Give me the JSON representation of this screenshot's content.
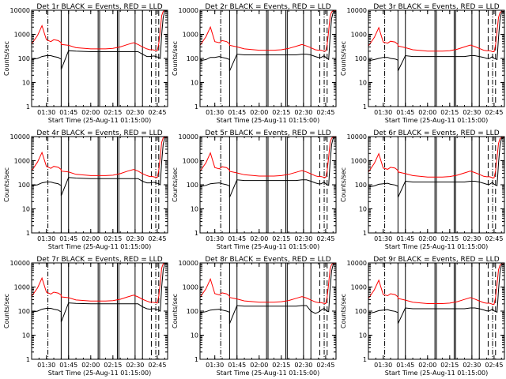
{
  "figure": {
    "background": "#ffffff",
    "colors": {
      "axes": "#000000",
      "events": "#000000",
      "lld": "#ff0000"
    }
  },
  "shared": {
    "type": "line",
    "xlabel": "Start Time (25-Aug-11 01:15:00)",
    "ylabel": "Counts/sec",
    "y_scale": "log",
    "ylim": [
      1,
      10000
    ],
    "y_ticks": [
      1,
      10,
      100,
      1000,
      10000
    ],
    "y_tick_labels": [
      "1",
      "10",
      "100",
      "1000",
      "10000"
    ],
    "xlim": [
      "01:20",
      "02:52"
    ],
    "x_ticks": [
      "01:30",
      "01:45",
      "02:00",
      "02:15",
      "02:30",
      "02:45"
    ],
    "x_tick_labels": [
      "01:30",
      "01:45",
      "02:00",
      "02:15",
      "02:30",
      "02:45"
    ],
    "time_x": [
      "01:20",
      "01:24",
      "01:27",
      "01:30",
      "01:33",
      "01:35",
      "01:38",
      "01:39",
      "01:40",
      "01:40",
      "01:45",
      "01:50",
      "02:00",
      "02:10",
      "02:15",
      "02:20",
      "02:25",
      "02:29",
      "02:32",
      "02:35",
      "02:38",
      "02:40",
      "02:42",
      "02:43",
      "02:44",
      "02:45",
      "02:46",
      "02:47",
      "02:48",
      "02:49",
      "02:50",
      "02:52"
    ],
    "gaps": [
      [
        "01:40",
        "01:45"
      ],
      [
        "01:48",
        "01:49"
      ],
      [
        "02:05",
        "02:06"
      ],
      [
        "02:18",
        "02:19"
      ],
      [
        "02:30",
        "02:35"
      ]
    ],
    "vlines_solid": [
      "01:40",
      "01:45",
      "02:05",
      "02:06",
      "02:18",
      "02:19",
      "02:30",
      "02:35"
    ]
  },
  "chart_data": [
    {
      "title": "Det 1r BLACK = Events, RED = LLD",
      "series": [
        {
          "name": "Events",
          "color": "#000000",
          "y": [
            90,
            100,
            120,
            130,
            130,
            120,
            110,
            100,
            95,
            35,
            210,
            200,
            190,
            190,
            190,
            190,
            190,
            190,
            190,
            150,
            120,
            120,
            125,
            125,
            120,
            115,
            110,
            100,
            1000,
            5000,
            9000,
            10000
          ]
        },
        {
          "name": "LLD",
          "color": "#ff0000",
          "y": [
            400,
            900,
            2300,
            600,
            500,
            600,
            550,
            500,
            450,
            380,
            350,
            280,
            250,
            250,
            260,
            300,
            380,
            450,
            380,
            300,
            250,
            230,
            230,
            220,
            220,
            210,
            400,
            1500,
            6000,
            9000,
            10000,
            10000
          ]
        }
      ],
      "vlines_dashdot": [
        "01:31",
        "02:44"
      ],
      "vlines_dashed": [
        "02:41",
        "02:46"
      ]
    },
    {
      "title": "Det 2r BLACK = Events, RED = LLD",
      "series": [
        {
          "name": "Events",
          "color": "#000000",
          "y": [
            80,
            90,
            110,
            110,
            120,
            110,
            100,
            95,
            90,
            30,
            150,
            140,
            140,
            140,
            140,
            140,
            140,
            150,
            150,
            140,
            120,
            110,
            110,
            120,
            130,
            110,
            100,
            90,
            800,
            4500,
            8000,
            9000
          ]
        },
        {
          "name": "LLD",
          "color": "#ff0000",
          "y": [
            350,
            800,
            2000,
            500,
            450,
            550,
            500,
            450,
            400,
            350,
            300,
            250,
            220,
            220,
            230,
            260,
            320,
            380,
            330,
            280,
            230,
            220,
            220,
            210,
            200,
            200,
            380,
            1400,
            5500,
            8500,
            9500,
            9500
          ]
        }
      ],
      "vlines_dashdot": [
        "01:34",
        "02:44"
      ],
      "vlines_dashed": [
        "02:41",
        "02:46"
      ]
    },
    {
      "title": "Det 3r BLACK = Events, RED = LLD",
      "series": [
        {
          "name": "Events",
          "color": "#000000",
          "y": [
            80,
            90,
            100,
            110,
            110,
            100,
            95,
            90,
            85,
            30,
            130,
            120,
            120,
            120,
            120,
            120,
            120,
            130,
            130,
            120,
            110,
            100,
            100,
            110,
            120,
            100,
            95,
            90,
            700,
            4000,
            8000,
            9000
          ]
        },
        {
          "name": "LLD",
          "color": "#ff0000",
          "y": [
            330,
            750,
            1900,
            480,
            430,
            520,
            480,
            430,
            380,
            330,
            280,
            230,
            200,
            200,
            210,
            240,
            300,
            360,
            310,
            260,
            220,
            210,
            210,
            200,
            190,
            190,
            360,
            1300,
            5000,
            8000,
            9000,
            9000
          ]
        }
      ],
      "vlines_dashdot": [
        "01:31",
        "02:44"
      ],
      "vlines_dashed": [
        "02:41",
        "02:46"
      ]
    },
    {
      "title": "Det 4r BLACK = Events, RED = LLD",
      "series": [
        {
          "name": "Events",
          "color": "#000000",
          "y": [
            90,
            100,
            120,
            130,
            130,
            120,
            110,
            100,
            95,
            35,
            200,
            190,
            180,
            180,
            180,
            180,
            180,
            180,
            180,
            140,
            120,
            120,
            125,
            125,
            120,
            115,
            110,
            100,
            900,
            4800,
            8800,
            10000
          ]
        },
        {
          "name": "LLD",
          "color": "#ff0000",
          "y": [
            380,
            880,
            2200,
            580,
            480,
            580,
            530,
            480,
            430,
            370,
            340,
            270,
            240,
            240,
            250,
            290,
            370,
            430,
            370,
            290,
            240,
            220,
            220,
            210,
            210,
            200,
            390,
            1450,
            5800,
            8800,
            9800,
            9800
          ]
        }
      ],
      "vlines_dashdot": [
        "01:31",
        "02:44"
      ],
      "vlines_dashed": [
        "02:41",
        "02:46"
      ]
    },
    {
      "title": "Det 5r BLACK = Events, RED = LLD",
      "series": [
        {
          "name": "Events",
          "color": "#000000",
          "y": [
            85,
            95,
            110,
            115,
            120,
            110,
            100,
            95,
            90,
            30,
            160,
            150,
            150,
            150,
            150,
            150,
            150,
            160,
            160,
            140,
            120,
            110,
            110,
            120,
            130,
            110,
            100,
            95,
            850,
            4600,
            8400,
            9500
          ]
        },
        {
          "name": "LLD",
          "color": "#ff0000",
          "y": [
            360,
            820,
            2100,
            520,
            460,
            560,
            510,
            460,
            410,
            360,
            310,
            260,
            230,
            230,
            240,
            270,
            330,
            390,
            340,
            285,
            235,
            220,
            220,
            210,
            205,
            200,
            385,
            1420,
            5600,
            8600,
            9600,
            9600
          ]
        }
      ],
      "vlines_dashdot": [
        "01:34",
        "02:44"
      ],
      "vlines_dashed": [
        "02:41",
        "02:46"
      ]
    },
    {
      "title": "Det 6r BLACK = Events, RED = LLD",
      "series": [
        {
          "name": "Events",
          "color": "#000000",
          "y": [
            80,
            90,
            105,
            110,
            115,
            105,
            98,
            92,
            88,
            30,
            140,
            130,
            130,
            130,
            130,
            130,
            130,
            140,
            140,
            130,
            115,
            105,
            105,
            115,
            125,
            105,
            98,
            92,
            750,
            4200,
            8200,
            9200
          ]
        },
        {
          "name": "LLD",
          "color": "#ff0000",
          "y": [
            340,
            780,
            1950,
            490,
            440,
            530,
            490,
            440,
            390,
            340,
            290,
            240,
            210,
            210,
            220,
            250,
            310,
            370,
            320,
            270,
            225,
            215,
            215,
            205,
            195,
            195,
            370,
            1350,
            5200,
            8200,
            9200,
            9200
          ]
        }
      ],
      "vlines_dashdot": [
        "01:31",
        "02:44"
      ],
      "vlines_dashed": [
        "02:41",
        "02:46"
      ]
    },
    {
      "title": "Det 7r BLACK = Events, RED = LLD",
      "series": [
        {
          "name": "Events",
          "color": "#000000",
          "y": [
            90,
            100,
            120,
            130,
            130,
            120,
            110,
            100,
            95,
            35,
            220,
            210,
            200,
            200,
            200,
            200,
            200,
            200,
            200,
            150,
            125,
            120,
            125,
            125,
            120,
            115,
            110,
            100,
            1000,
            5000,
            9000,
            10000
          ]
        },
        {
          "name": "LLD",
          "color": "#ff0000",
          "y": [
            410,
            920,
            2350,
            610,
            510,
            610,
            560,
            510,
            460,
            390,
            360,
            290,
            260,
            260,
            270,
            310,
            390,
            460,
            390,
            310,
            260,
            235,
            235,
            225,
            225,
            215,
            410,
            1550,
            6100,
            9100,
            10000,
            10000
          ]
        }
      ],
      "vlines_dashdot": [
        "01:31",
        "02:44"
      ],
      "vlines_dashed": [
        "02:41",
        "02:46"
      ]
    },
    {
      "title": "Det 8r BLACK = Events, RED = LLD",
      "series": [
        {
          "name": "Events",
          "color": "#000000",
          "y": [
            85,
            95,
            110,
            115,
            120,
            110,
            100,
            95,
            90,
            30,
            170,
            160,
            160,
            160,
            160,
            160,
            160,
            170,
            170,
            100,
            80,
            90,
            110,
            120,
            130,
            110,
            100,
            95,
            850,
            4600,
            8400,
            9500
          ]
        },
        {
          "name": "LLD",
          "color": "#ff0000",
          "y": [
            370,
            840,
            2150,
            530,
            470,
            570,
            520,
            470,
            420,
            370,
            320,
            265,
            235,
            235,
            245,
            275,
            340,
            400,
            350,
            290,
            240,
            225,
            225,
            215,
            210,
            205,
            390,
            1430,
            5650,
            8650,
            9650,
            9650
          ]
        }
      ],
      "vlines_dashdot": [
        "01:34",
        "02:44"
      ],
      "vlines_dashed": [
        "02:41",
        "02:46"
      ]
    },
    {
      "title": "Det 9r BLACK = Events, RED = LLD",
      "series": [
        {
          "name": "Events",
          "color": "#000000",
          "y": [
            80,
            90,
            105,
            110,
            115,
            105,
            98,
            92,
            88,
            30,
            135,
            125,
            125,
            125,
            125,
            125,
            125,
            135,
            135,
            125,
            112,
            102,
            102,
            112,
            122,
            102,
            96,
            90,
            720,
            4100,
            8100,
            9100
          ]
        },
        {
          "name": "LLD",
          "color": "#ff0000",
          "y": [
            335,
            770,
            1920,
            485,
            435,
            525,
            485,
            435,
            385,
            335,
            285,
            235,
            205,
            205,
            215,
            245,
            305,
            365,
            315,
            265,
            222,
            212,
            212,
            202,
            192,
            192,
            365,
            1320,
            5100,
            8100,
            9100,
            9100
          ]
        }
      ],
      "vlines_dashdot": [
        "01:31",
        "02:44"
      ],
      "vlines_dashed": [
        "02:41",
        "02:46"
      ]
    }
  ]
}
